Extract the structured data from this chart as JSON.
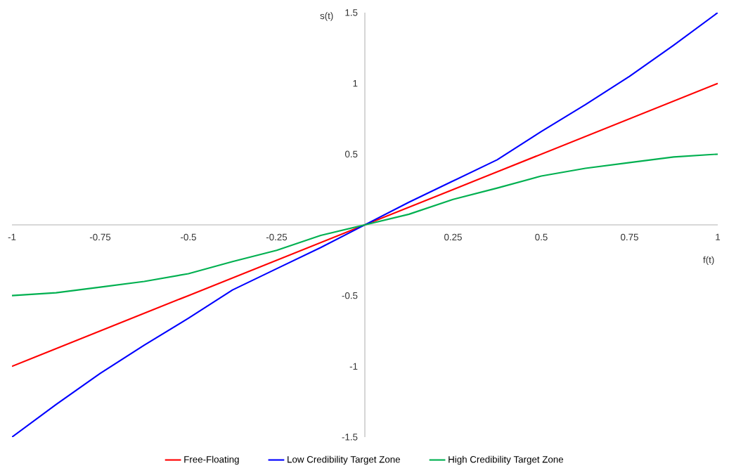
{
  "chart_data": {
    "type": "line",
    "xlabel": "f(t)",
    "ylabel": "s(t)",
    "x": [
      -1,
      -0.875,
      -0.75,
      -0.625,
      -0.5,
      -0.375,
      -0.25,
      -0.125,
      0,
      0.125,
      0.25,
      0.375,
      0.5,
      0.625,
      0.75,
      0.875,
      1
    ],
    "series": [
      {
        "name": "Free-Floating",
        "color": "#ff0000",
        "values": [
          -1,
          -0.875,
          -0.75,
          -0.625,
          -0.5,
          -0.375,
          -0.25,
          -0.125,
          0,
          0.125,
          0.25,
          0.375,
          0.5,
          0.625,
          0.75,
          0.875,
          1
        ]
      },
      {
        "name": "Low Credibility Target Zone",
        "color": "#0000ff",
        "values": [
          -1.5,
          -1.27,
          -1.05,
          -0.85,
          -0.66,
          -0.46,
          -0.31,
          -0.16,
          0,
          0.16,
          0.31,
          0.46,
          0.66,
          0.85,
          1.05,
          1.27,
          1.5
        ]
      },
      {
        "name": "High Credibility Target Zone",
        "color": "#00b050",
        "values": [
          -0.5,
          -0.48,
          -0.44,
          -0.4,
          -0.345,
          -0.26,
          -0.18,
          -0.075,
          0,
          0.075,
          0.18,
          0.26,
          0.345,
          0.4,
          0.44,
          0.48,
          0.5
        ]
      }
    ],
    "xlim": [
      -1,
      1
    ],
    "ylim": [
      -1.5,
      1.5
    ],
    "xticks": [
      -1,
      -0.75,
      -0.5,
      -0.25,
      0.25,
      0.5,
      0.75,
      1
    ],
    "yticks": [
      -1.5,
      -1,
      -0.5,
      0.5,
      1,
      1.5
    ],
    "legend": "bottom"
  }
}
